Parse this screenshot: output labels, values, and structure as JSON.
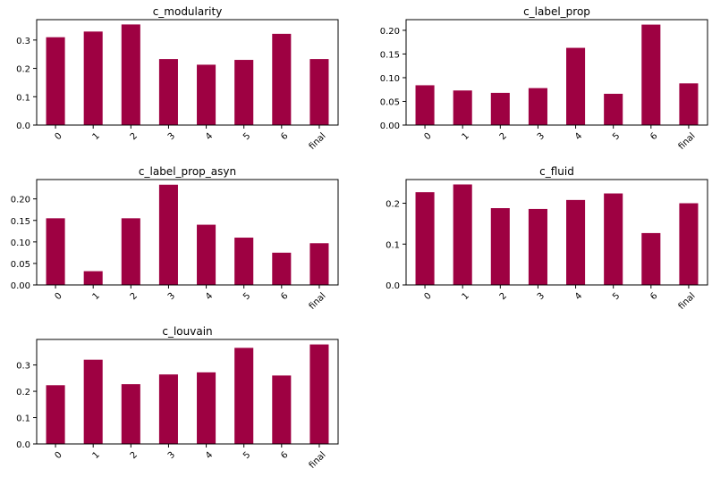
{
  "chart_data": [
    {
      "type": "bar",
      "title": "c_modularity",
      "categories": [
        "0",
        "1",
        "2",
        "3",
        "4",
        "5",
        "6",
        "final"
      ],
      "values": [
        0.31,
        0.33,
        0.355,
        0.233,
        0.213,
        0.23,
        0.322,
        0.233
      ],
      "yticks": [
        "0.0",
        "0.1",
        "0.2",
        "0.3"
      ],
      "ylim": [
        0,
        0.372
      ],
      "xlabel": "",
      "ylabel": ""
    },
    {
      "type": "bar",
      "title": "c_label_prop",
      "categories": [
        "0",
        "1",
        "2",
        "3",
        "4",
        "5",
        "6",
        "final"
      ],
      "values": [
        0.084,
        0.073,
        0.068,
        0.078,
        0.163,
        0.066,
        0.212,
        0.088
      ],
      "yticks": [
        "0.00",
        "0.05",
        "0.10",
        "0.15",
        "0.20"
      ],
      "ylim": [
        0,
        0.2225
      ],
      "xlabel": "",
      "ylabel": ""
    },
    {
      "type": "bar",
      "title": "c_label_prop_asyn",
      "categories": [
        "0",
        "1",
        "2",
        "3",
        "4",
        "5",
        "6",
        "final"
      ],
      "values": [
        0.155,
        0.032,
        0.155,
        0.233,
        0.14,
        0.11,
        0.075,
        0.097
      ],
      "yticks": [
        "0.00",
        "0.05",
        "0.10",
        "0.15",
        "0.20"
      ],
      "ylim": [
        0,
        0.245
      ],
      "xlabel": "",
      "ylabel": ""
    },
    {
      "type": "bar",
      "title": "c_fluid",
      "categories": [
        "0",
        "1",
        "2",
        "3",
        "4",
        "5",
        "6",
        "final"
      ],
      "values": [
        0.227,
        0.246,
        0.188,
        0.186,
        0.208,
        0.224,
        0.127,
        0.2
      ],
      "yticks": [
        "0.0",
        "0.1",
        "0.2"
      ],
      "ylim": [
        0,
        0.258
      ],
      "xlabel": "",
      "ylabel": ""
    },
    {
      "type": "bar",
      "title": "c_louvain",
      "categories": [
        "0",
        "1",
        "2",
        "3",
        "4",
        "5",
        "6",
        "final"
      ],
      "values": [
        0.223,
        0.32,
        0.227,
        0.264,
        0.272,
        0.365,
        0.26,
        0.378
      ],
      "yticks": [
        "0.0",
        "0.1",
        "0.2",
        "0.3"
      ],
      "ylim": [
        0,
        0.397
      ],
      "xlabel": "",
      "ylabel": ""
    }
  ],
  "style": {
    "bar_color": "#9e0142",
    "axis_color": "#000000",
    "grid": false,
    "legend": "none"
  }
}
